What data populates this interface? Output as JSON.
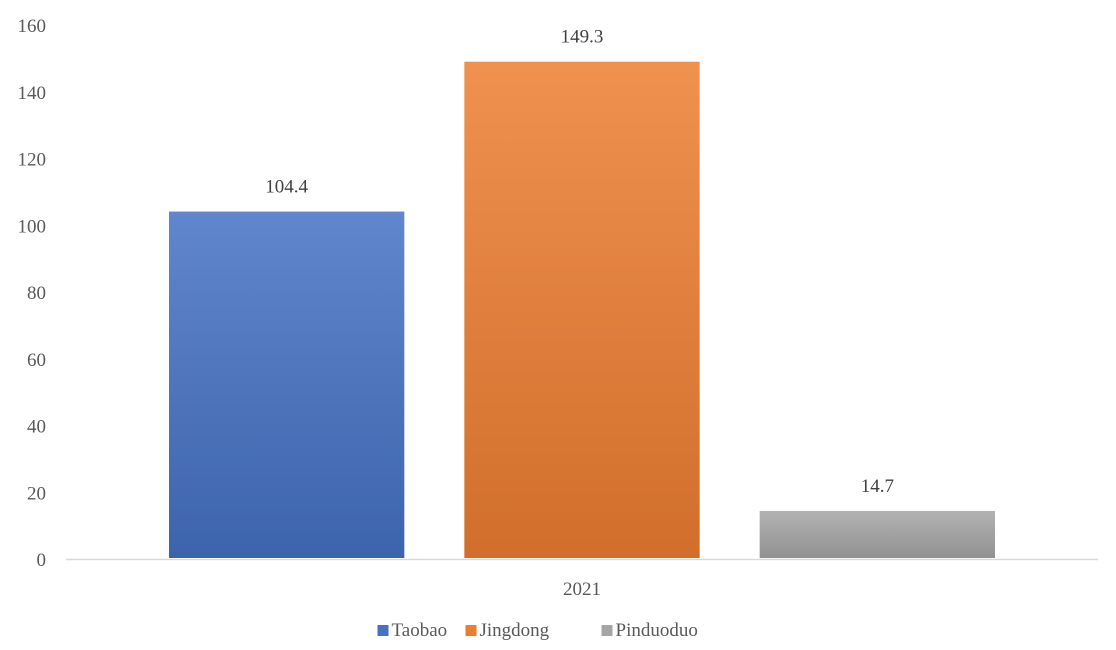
{
  "chart_data": {
    "type": "bar",
    "categories": [
      "2021"
    ],
    "series": [
      {
        "name": "Taobao",
        "values": [
          104.4
        ],
        "color": "#4472C4"
      },
      {
        "name": "Jingdong",
        "values": [
          149.3
        ],
        "color": "#ED7D31"
      },
      {
        "name": "Pinduoduo",
        "values": [
          14.7
        ],
        "color": "#A5A5A5"
      }
    ],
    "data_labels": [
      "104.4",
      "149.3",
      "14.7"
    ],
    "y_ticks": [
      "0",
      "20",
      "40",
      "60",
      "80",
      "100",
      "120",
      "140",
      "160"
    ],
    "ylim": [
      0,
      160
    ],
    "grid": false,
    "legend_position": "bottom",
    "title": "",
    "xlabel": "",
    "ylabel": ""
  }
}
